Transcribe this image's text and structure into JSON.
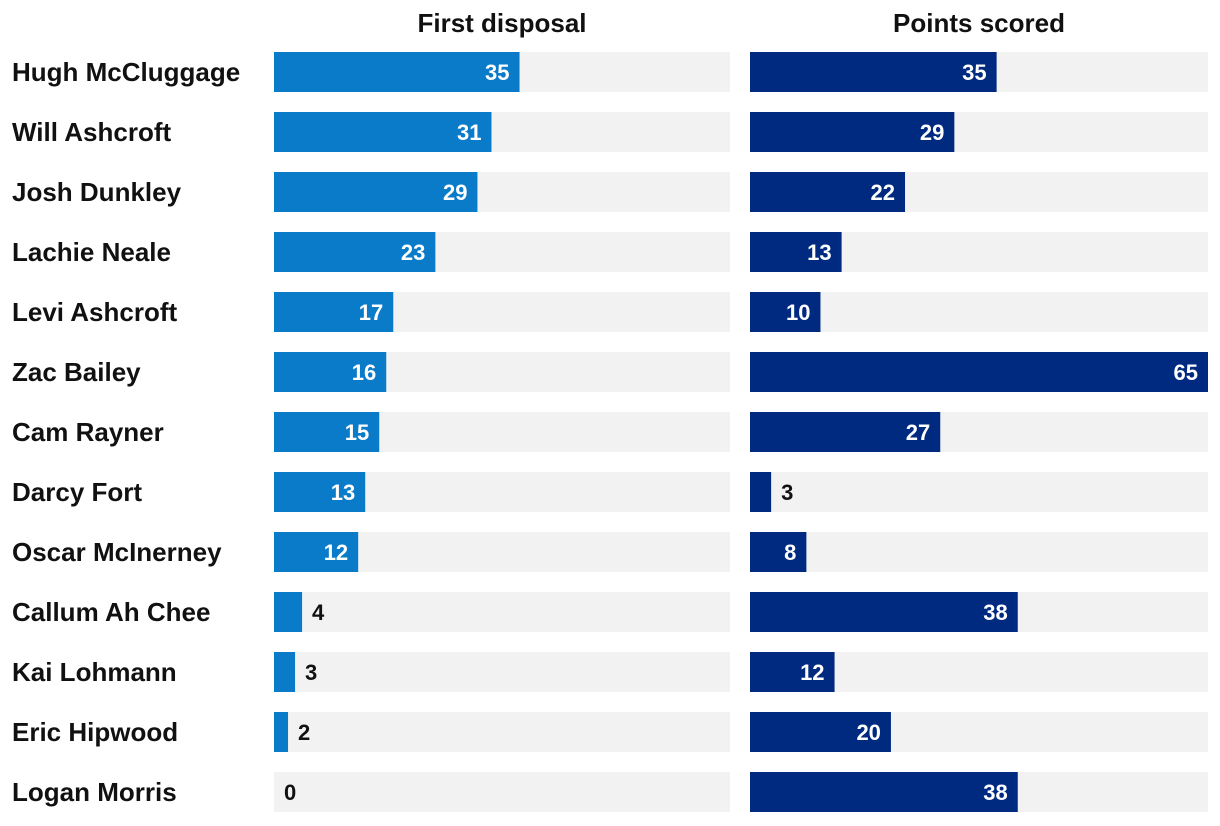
{
  "chart_data": {
    "type": "bar",
    "orientation": "horizontal",
    "categories": [
      "Hugh McCluggage",
      "Will Ashcroft",
      "Josh Dunkley",
      "Lachie Neale",
      "Levi Ashcroft",
      "Zac Bailey",
      "Cam Rayner",
      "Darcy Fort",
      "Oscar McInerney",
      "Callum Ah Chee",
      "Kai Lohmann",
      "Eric Hipwood",
      "Logan Morris"
    ],
    "series": [
      {
        "name": "First disposal",
        "color": "#0a7bc9",
        "values": [
          35,
          31,
          29,
          23,
          17,
          16,
          15,
          13,
          12,
          4,
          3,
          2,
          0
        ],
        "xlim": [
          0,
          65
        ]
      },
      {
        "name": "Points scored",
        "color": "#002a80",
        "values": [
          35,
          29,
          22,
          13,
          10,
          65,
          27,
          3,
          8,
          38,
          12,
          20,
          38
        ],
        "xlim": [
          0,
          65
        ]
      }
    ],
    "track_color": "#f2f2f2",
    "data_labels": true,
    "grid": false,
    "legend": "none"
  }
}
